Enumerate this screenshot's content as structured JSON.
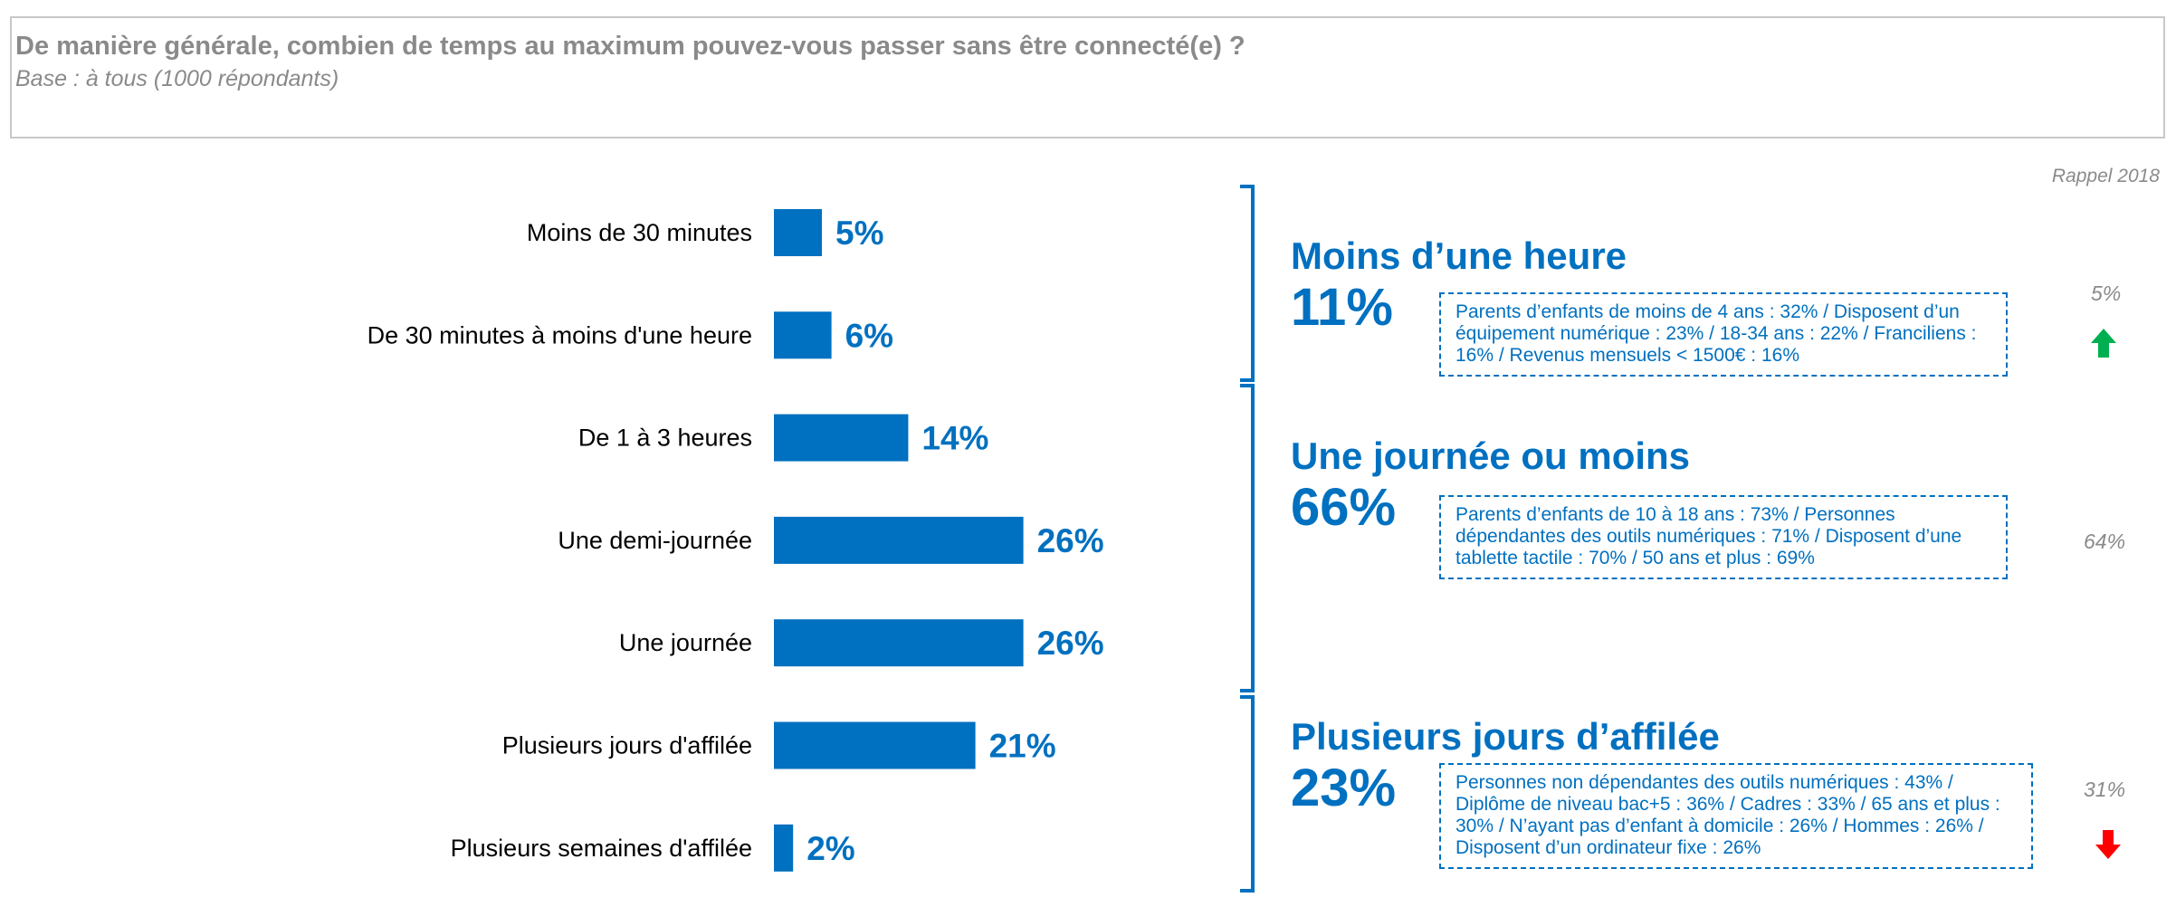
{
  "header": {
    "question": "De manière générale, combien de temps au maximum pouvez-vous passer sans être connecté(e) ?",
    "base": "Base : à tous (1000 répondants)"
  },
  "rappel_label": "Rappel 2018",
  "chart_data": {
    "type": "bar",
    "orientation": "horizontal",
    "categories": [
      "Moins de 30 minutes",
      "De 30 minutes à moins d'une heure",
      "De 1 à 3 heures",
      "Une demi-journée",
      "Une journée",
      "Plusieurs jours d'affilée",
      "Plusieurs semaines d'affilée"
    ],
    "values": [
      5,
      6,
      14,
      26,
      26,
      21,
      2
    ],
    "value_labels": [
      "5%",
      "6%",
      "14%",
      "26%",
      "26%",
      "21%",
      "2%"
    ],
    "unit": "%",
    "bar_color": "#0070c0"
  },
  "groups": [
    {
      "title": "Moins d’une heure",
      "value": "11%",
      "detail": "Parents d’enfants de moins de 4 ans : 32% / Disposent d’un équipement numérique : 23% / 18-34 ans : 22% / Franciliens : 16% / Revenus mensuels < 1500€ : 16%",
      "rappel": "5%",
      "trend": "up",
      "trend_color": "#00b050"
    },
    {
      "title": "Une journée ou moins",
      "value": "66%",
      "detail": "Parents d’enfants de 10 à 18 ans : 73% / Personnes dépendantes des outils numériques : 71% / Disposent d’une tablette tactile : 70% / 50 ans et plus : 69%",
      "rappel": "64%",
      "trend": "none"
    },
    {
      "title": "Plusieurs jours d’affilée",
      "value": "23%",
      "detail": "Personnes non dépendantes des outils numériques : 43% / Diplôme de niveau bac+5 : 36% / Cadres : 33% / 65 ans et plus : 30% / N’ayant pas d’enfant à domicile : 26% / Hommes : 26% / Disposent d’un ordinateur fixe : 26%",
      "rappel": "31%",
      "trend": "down",
      "trend_color": "#ff0000"
    }
  ]
}
